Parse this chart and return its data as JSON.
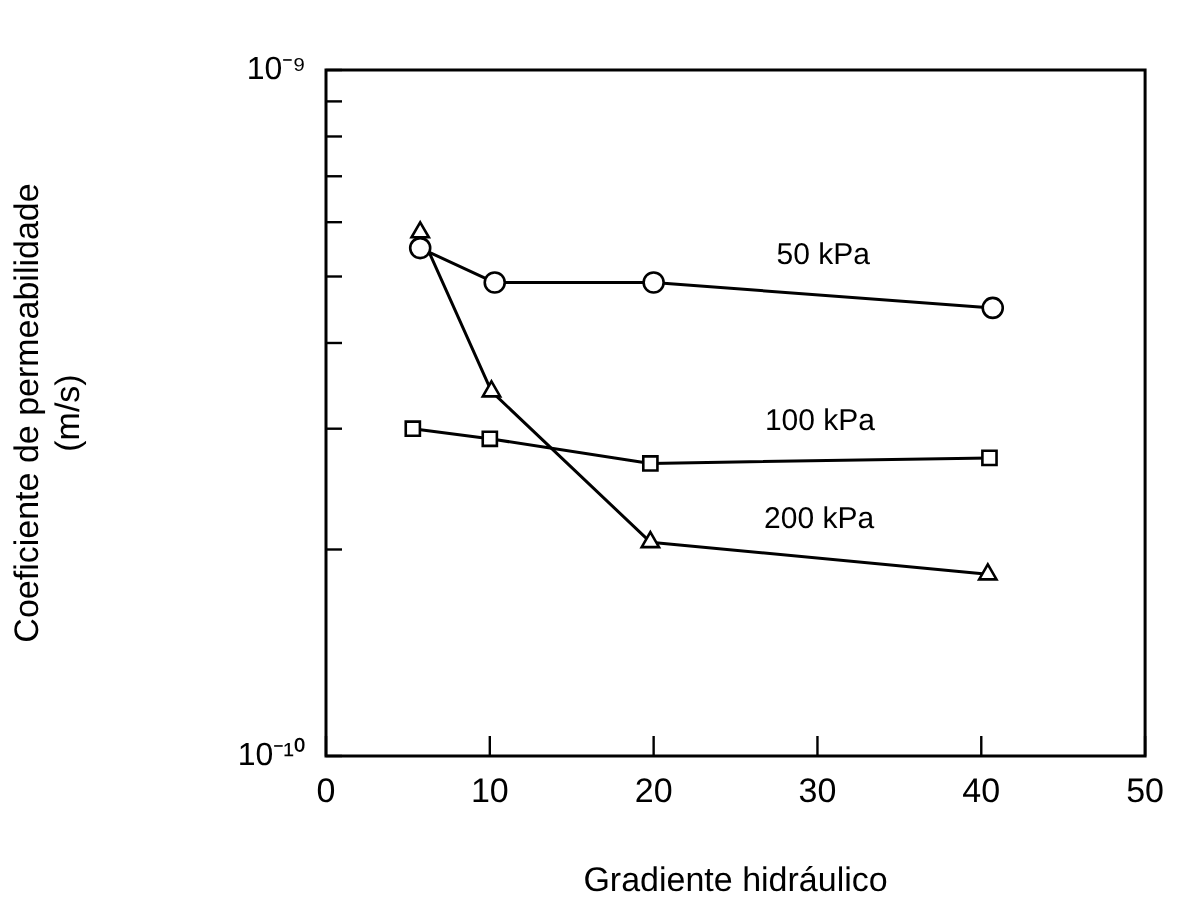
{
  "chart_data": {
    "type": "line",
    "xlabel": "Gradiente hidráulico",
    "ylabel": "Coeficiente de permeabilidade\n(m/s)",
    "xlim": [
      0,
      50
    ],
    "xticks": [
      0,
      10,
      20,
      30,
      40,
      50
    ],
    "ylim": [
      1e-10,
      1e-09
    ],
    "log": "y",
    "yticks": [
      {
        "value": 1e-10,
        "label": "10⁻¹⁰"
      },
      {
        "value": 2e-10,
        "label": null
      },
      {
        "value": 3e-10,
        "label": null
      },
      {
        "value": 4e-10,
        "label": null
      },
      {
        "value": 5e-10,
        "label": null
      },
      {
        "value": 6e-10,
        "label": null
      },
      {
        "value": 7e-10,
        "label": null
      },
      {
        "value": 8e-10,
        "label": null
      },
      {
        "value": 9e-10,
        "label": null
      },
      {
        "value": 1e-09,
        "label": "10⁻⁹"
      }
    ],
    "grid": false,
    "legend": false,
    "line_style": "solid",
    "series": [
      {
        "name": "50 kPa",
        "color": "#000000",
        "marker": "circle",
        "x": [
          5.75,
          10.3,
          20.0,
          40.7
        ],
        "values": [
          5.5e-10,
          4.9e-10,
          4.9e-10,
          4.5e-10
        ]
      },
      {
        "name": "100 kPa",
        "color": "#000000",
        "marker": "square",
        "x": [
          5.3,
          10.0,
          19.8,
          40.5
        ],
        "values": [
          3e-10,
          2.9e-10,
          2.67e-10,
          2.72e-10
        ]
      },
      {
        "name": "200 kPa",
        "color": "#000000",
        "marker": "triangle",
        "x": [
          5.75,
          10.1,
          19.8,
          40.4
        ],
        "values": [
          5.8e-10,
          3.4e-10,
          2.05e-10,
          1.84e-10
        ]
      }
    ]
  }
}
